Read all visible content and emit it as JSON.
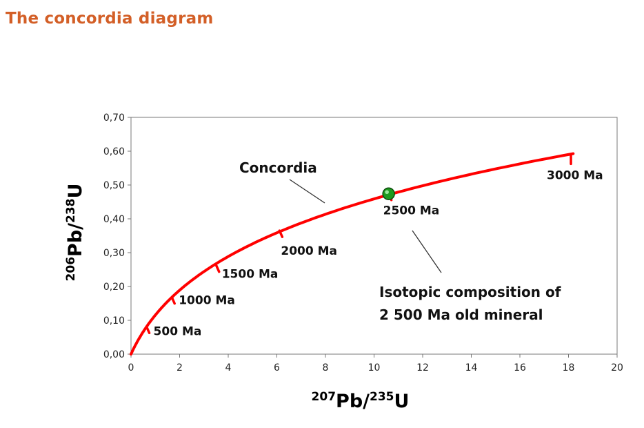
{
  "title": "The concordia diagram",
  "colors": {
    "title": "#d35f27",
    "curve": "#ff0000",
    "marker": "#1f9a1f"
  },
  "chart_data": {
    "type": "line",
    "xlabel": {
      "base": "Pb/",
      "mass1": "207",
      "mass2": "235",
      "elem": "U"
    },
    "ylabel": {
      "base": "Pb/",
      "mass1": "206",
      "mass2": "238",
      "elem": "U"
    },
    "xlim": [
      0,
      20
    ],
    "ylim": [
      0,
      0.7
    ],
    "xticks": [
      0,
      2,
      4,
      6,
      8,
      10,
      12,
      14,
      16,
      18,
      20
    ],
    "xtick_labels": [
      "0",
      "2",
      "4",
      "6",
      "8",
      "10",
      "12",
      "14",
      "16",
      "18",
      "20"
    ],
    "yticks": [
      0,
      0.1,
      0.2,
      0.3,
      0.4,
      0.5,
      0.6,
      0.7
    ],
    "ytick_labels": [
      "0,00",
      "0,10",
      "0,20",
      "0,30",
      "0,40",
      "0,50",
      "0,60",
      "0,70"
    ],
    "grid": false,
    "curve_name": "Concordia",
    "age_marks": [
      {
        "label": "500 Ma",
        "x": 0.64,
        "y": 0.081
      },
      {
        "label": "1000 Ma",
        "x": 1.68,
        "y": 0.168
      },
      {
        "label": "1500 Ma",
        "x": 3.51,
        "y": 0.262
      },
      {
        "label": "2000 Ma",
        "x": 6.11,
        "y": 0.365
      },
      {
        "label": "2500 Ma",
        "x": 10.6,
        "y": 0.474
      },
      {
        "label": "3000 Ma",
        "x": 18.1,
        "y": 0.589
      }
    ],
    "point": {
      "x": 10.6,
      "y": 0.474
    },
    "annotation": {
      "line1": "Isotopic composition of",
      "line2": "2 500 Ma old mineral"
    }
  }
}
